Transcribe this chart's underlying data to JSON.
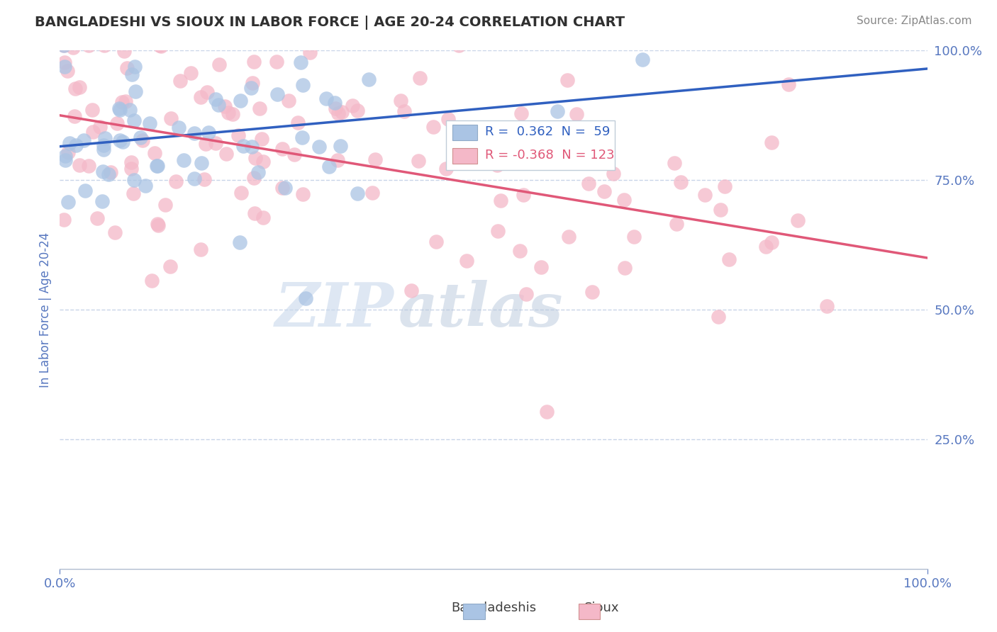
{
  "title": "BANGLADESHI VS SIOUX IN LABOR FORCE | AGE 20-24 CORRELATION CHART",
  "source_text": "Source: ZipAtlas.com",
  "ylabel": "In Labor Force | Age 20-24",
  "xlim": [
    0.0,
    1.0
  ],
  "ylim": [
    0.0,
    1.0
  ],
  "y_tick_positions": [
    1.0,
    0.75,
    0.5,
    0.25
  ],
  "y_tick_labels": [
    "100.0%",
    "75.0%",
    "50.0%",
    "25.0%"
  ],
  "blue_R": 0.362,
  "blue_N": 59,
  "pink_R": -0.368,
  "pink_N": 123,
  "blue_dot_color": "#aac4e4",
  "pink_dot_color": "#f4b8c8",
  "blue_line_color": "#3060c0",
  "pink_line_color": "#e05878",
  "title_color": "#303030",
  "label_color": "#5878c0",
  "source_color": "#888888",
  "background_color": "#ffffff",
  "grid_color": "#c8d4e8",
  "blue_trend_x": [
    0.0,
    1.0
  ],
  "blue_trend_y": [
    0.815,
    0.965
  ],
  "pink_trend_x": [
    0.0,
    1.0
  ],
  "pink_trend_y": [
    0.875,
    0.6
  ]
}
